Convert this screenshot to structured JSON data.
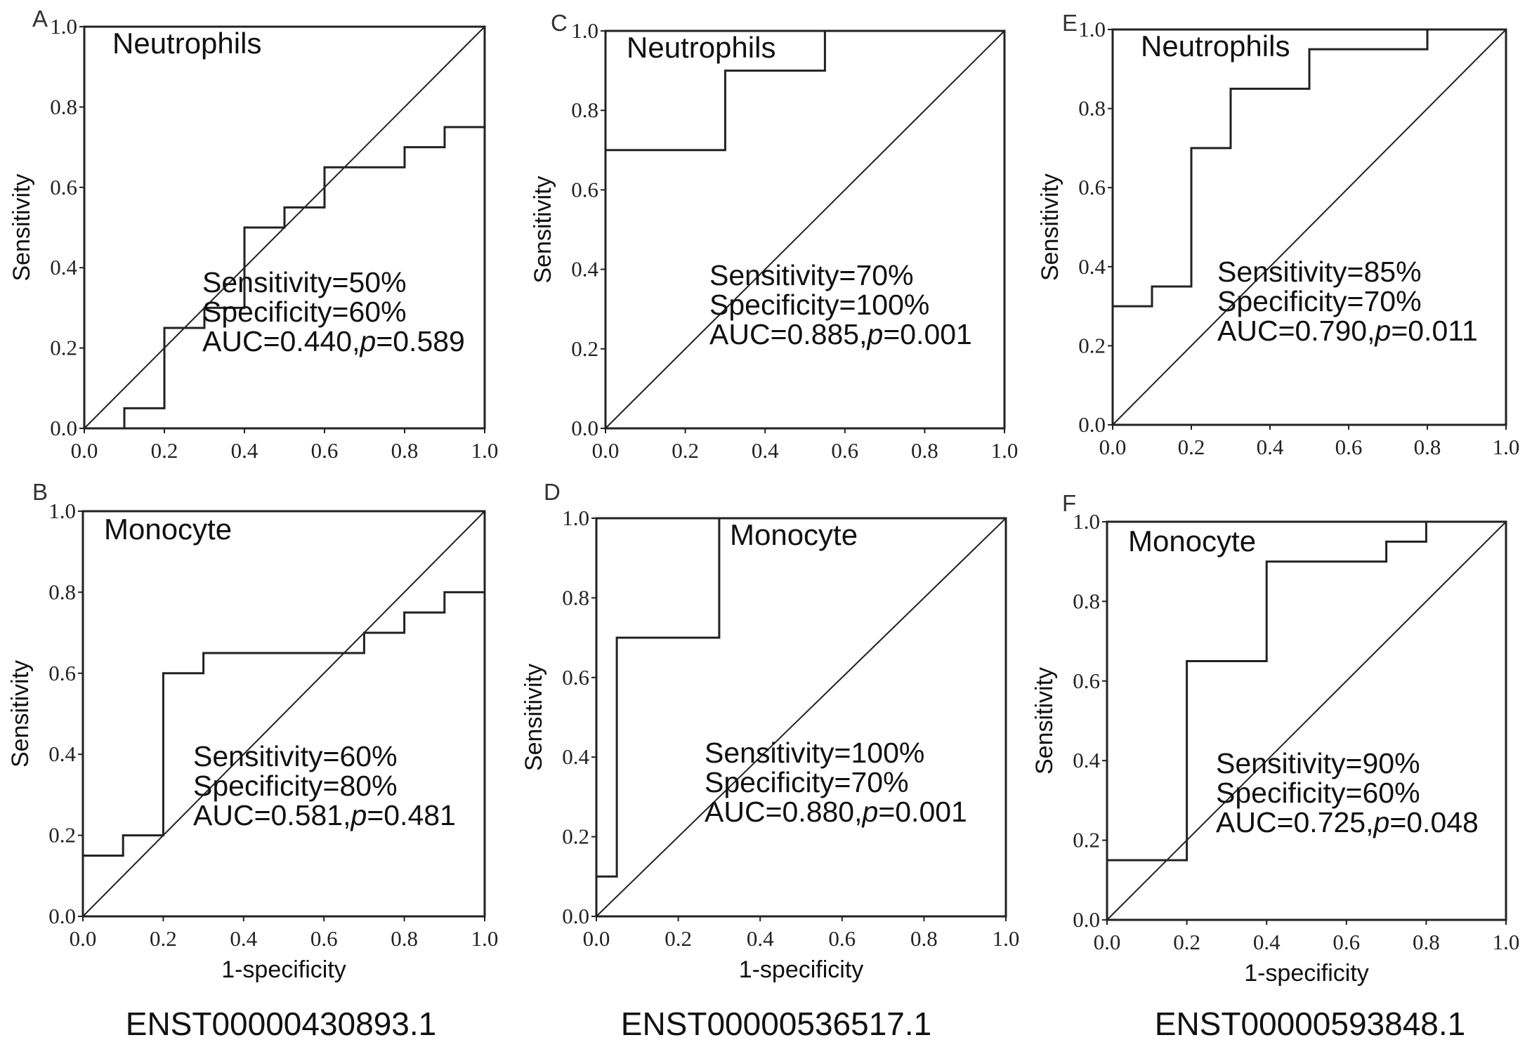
{
  "gene_labels": [
    "ENST00000430893.1",
    "ENST00000536517.1",
    "ENST00000593848.1"
  ],
  "chart_data": [
    {
      "panel": "A",
      "type": "line",
      "title": "Neutrophils",
      "xlabel": "",
      "ylabel": "Sensitivity",
      "xlim": [
        0,
        1
      ],
      "ylim": [
        0,
        1
      ],
      "xticks": [
        "0.0",
        "0.2",
        "0.4",
        "0.6",
        "0.8",
        "1.0"
      ],
      "yticks": [
        "0.0",
        "0.2",
        "0.4",
        "0.6",
        "0.8",
        "1.0"
      ],
      "reference_line": true,
      "roc": {
        "x": [
          0,
          0.1,
          0.1,
          0.2,
          0.2,
          0.3,
          0.3,
          0.4,
          0.4,
          0.5,
          0.5,
          0.6,
          0.6,
          0.8,
          0.8,
          0.9,
          0.9,
          1.0
        ],
        "y": [
          0,
          0,
          0.05,
          0.05,
          0.25,
          0.25,
          0.3,
          0.3,
          0.5,
          0.5,
          0.55,
          0.55,
          0.65,
          0.65,
          0.7,
          0.7,
          0.75,
          0.75
        ]
      },
      "annotations": [
        "Sensitivity=50%",
        "Specificity=60%"
      ],
      "auc_label": "AUC=0.440,",
      "p_italic": "p",
      "p_value": "=0.589"
    },
    {
      "panel": "B",
      "type": "line",
      "title": "Monocyte",
      "xlabel": "1-specificity",
      "ylabel": "Sensitivity",
      "xlim": [
        0,
        1
      ],
      "ylim": [
        0,
        1
      ],
      "xticks": [
        "0.0",
        "0.2",
        "0.4",
        "0.6",
        "0.8",
        "1.0"
      ],
      "yticks": [
        "0.0",
        "0.2",
        "0.4",
        "0.6",
        "0.8",
        "1.0"
      ],
      "reference_line": true,
      "roc": {
        "x": [
          0,
          0.1,
          0.1,
          0.2,
          0.2,
          0.3,
          0.3,
          0.7,
          0.7,
          0.8,
          0.8,
          0.9,
          0.9,
          1.0
        ],
        "y": [
          0.15,
          0.15,
          0.2,
          0.2,
          0.6,
          0.6,
          0.65,
          0.65,
          0.7,
          0.7,
          0.75,
          0.75,
          0.8,
          0.8
        ]
      },
      "annotations": [
        "Sensitivity=60%",
        "Specificity=80%"
      ],
      "auc_label": "AUC=0.581,",
      "p_italic": "p",
      "p_value": "=0.481"
    },
    {
      "panel": "C",
      "type": "line",
      "title": "Neutrophils",
      "xlabel": "",
      "ylabel": "Sensitivity",
      "xlim": [
        0,
        1
      ],
      "ylim": [
        0,
        1
      ],
      "xticks": [
        "0.0",
        "0.2",
        "0.4",
        "0.6",
        "0.8",
        "1.0"
      ],
      "yticks": [
        "0.0",
        "0.2",
        "0.4",
        "0.6",
        "0.8",
        "1.0"
      ],
      "reference_line": true,
      "roc": {
        "x": [
          0,
          0,
          0.3,
          0.3,
          0.55,
          0.55
        ],
        "y": [
          0,
          0.7,
          0.7,
          0.9,
          0.9,
          1.0
        ]
      },
      "annotations": [
        "Sensitivity=70%",
        "Specificity=100%"
      ],
      "auc_label": "AUC=0.885,",
      "p_italic": "p",
      "p_value": "=0.001"
    },
    {
      "panel": "D",
      "type": "line",
      "title": "Monocyte",
      "xlabel": "1-specificity",
      "ylabel": "Sensitivity",
      "xlim": [
        0,
        1
      ],
      "ylim": [
        0,
        1
      ],
      "xticks": [
        "0.0",
        "0.2",
        "0.4",
        "0.6",
        "0.8",
        "1.0"
      ],
      "yticks": [
        "0.0",
        "0.2",
        "0.4",
        "0.6",
        "0.8",
        "1.0"
      ],
      "reference_line": true,
      "roc": {
        "x": [
          0,
          0.05,
          0.05,
          0.3,
          0.3
        ],
        "y": [
          0.1,
          0.1,
          0.7,
          0.7,
          1.0
        ]
      },
      "annotations": [
        "Sensitivity=100%",
        "Specificity=70%"
      ],
      "auc_label": "AUC=0.880,",
      "p_italic": "p",
      "p_value": "=0.001"
    },
    {
      "panel": "E",
      "type": "line",
      "title": "Neutrophils",
      "xlabel": "",
      "ylabel": "Sensitivity",
      "xlim": [
        0,
        1
      ],
      "ylim": [
        0,
        1
      ],
      "xticks": [
        "0.0",
        "0.2",
        "0.4",
        "0.6",
        "0.8",
        "1.0"
      ],
      "yticks": [
        "0.0",
        "0.2",
        "0.4",
        "0.6",
        "0.8",
        "1.0"
      ],
      "reference_line": true,
      "roc": {
        "x": [
          0,
          0.1,
          0.1,
          0.2,
          0.2,
          0.3,
          0.3,
          0.5,
          0.5,
          0.8,
          0.8
        ],
        "y": [
          0.3,
          0.3,
          0.35,
          0.35,
          0.7,
          0.7,
          0.85,
          0.85,
          0.95,
          0.95,
          1.0
        ]
      },
      "annotations": [
        "Sensitivity=85%",
        "Specificity=70%"
      ],
      "auc_label": "AUC=0.790,",
      "p_italic": "p",
      "p_value": "=0.011"
    },
    {
      "panel": "F",
      "type": "line",
      "title": "Monocyte",
      "xlabel": "1-specificity",
      "ylabel": "Sensitivity",
      "xlim": [
        0,
        1
      ],
      "ylim": [
        0,
        1
      ],
      "xticks": [
        "0.0",
        "0.2",
        "0.4",
        "0.6",
        "0.8",
        "1.0"
      ],
      "yticks": [
        "0.0",
        "0.2",
        "0.4",
        "0.6",
        "0.8",
        "1.0"
      ],
      "reference_line": true,
      "roc": {
        "x": [
          0,
          0.2,
          0.2,
          0.4,
          0.4,
          0.7,
          0.7,
          0.8,
          0.8
        ],
        "y": [
          0.15,
          0.15,
          0.65,
          0.65,
          0.9,
          0.9,
          0.95,
          0.95,
          1.0
        ]
      },
      "annotations": [
        "Sensitivity=90%",
        "Specificity=60%"
      ],
      "auc_label": "AUC=0.725,",
      "p_italic": "p",
      "p_value": "=0.048"
    }
  ]
}
